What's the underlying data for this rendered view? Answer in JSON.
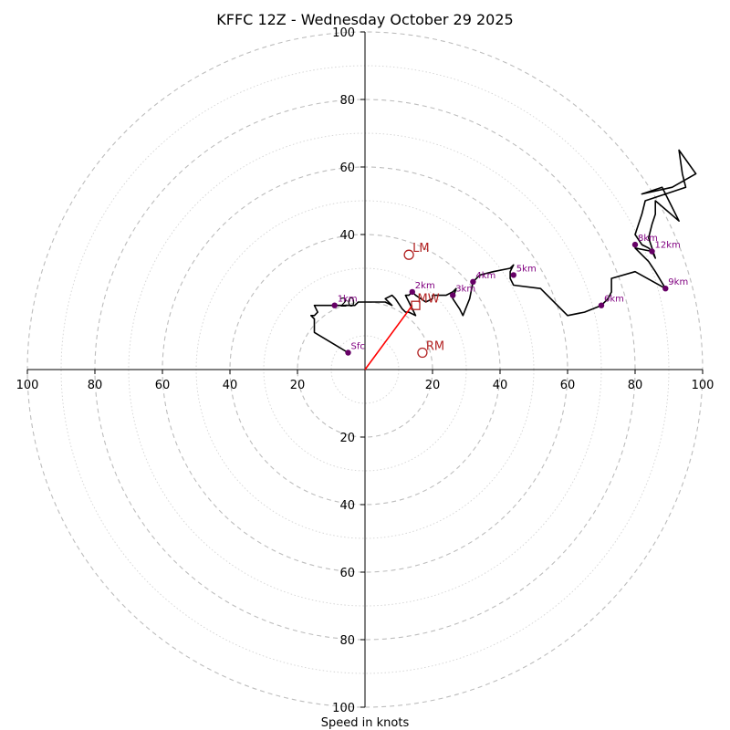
{
  "chart_data": {
    "type": "hodograph",
    "title": "KFFC 12Z - Wednesday October 29 2025",
    "xlabel": "Speed in knots",
    "ylabel": "",
    "xlim": [
      -100,
      100
    ],
    "ylim": [
      -100,
      100
    ],
    "ring_major_step": 20,
    "ring_minor_step": 10,
    "tick_labels": {
      "left": [
        "100",
        "80",
        "60",
        "40",
        "20"
      ],
      "right": [
        "20",
        "40",
        "60",
        "80",
        "100"
      ],
      "top": [
        "20",
        "40",
        "60",
        "80",
        "100"
      ],
      "bottom": [
        "20",
        "40",
        "60",
        "80",
        "100"
      ]
    },
    "tick_values": [
      20,
      40,
      60,
      80,
      100
    ],
    "profile": [
      [
        -5,
        5
      ],
      [
        -15,
        11
      ],
      [
        -15,
        15
      ],
      [
        -16,
        16
      ],
      [
        -15,
        16
      ],
      [
        -14,
        17
      ],
      [
        -15,
        19
      ],
      [
        -13,
        19
      ],
      [
        -10,
        19
      ],
      [
        -7,
        19
      ],
      [
        -4,
        19
      ],
      [
        -3,
        19
      ],
      [
        -2,
        20
      ],
      [
        -1,
        20
      ],
      [
        1,
        20
      ],
      [
        4,
        20
      ],
      [
        6,
        20
      ],
      [
        8,
        19
      ],
      [
        6,
        21
      ],
      [
        8,
        22
      ],
      [
        9,
        21
      ],
      [
        11,
        18
      ],
      [
        12,
        17
      ],
      [
        13,
        17
      ],
      [
        15,
        16
      ],
      [
        14,
        18
      ],
      [
        13,
        20
      ],
      [
        12,
        22
      ],
      [
        13,
        22
      ],
      [
        14,
        23
      ],
      [
        15,
        22
      ],
      [
        18,
        20
      ],
      [
        20,
        21
      ],
      [
        20,
        22
      ],
      [
        22,
        22
      ],
      [
        24,
        22
      ],
      [
        26,
        23
      ],
      [
        27,
        24
      ],
      [
        26,
        21
      ],
      [
        28,
        18
      ],
      [
        29,
        16
      ],
      [
        31,
        21
      ],
      [
        32,
        26
      ],
      [
        34,
        28
      ],
      [
        38,
        29
      ],
      [
        43,
        30
      ],
      [
        44,
        31
      ],
      [
        43,
        29
      ],
      [
        43,
        27
      ],
      [
        44,
        25
      ],
      [
        52,
        24
      ],
      [
        56,
        20
      ],
      [
        60,
        16
      ],
      [
        65,
        17
      ],
      [
        70,
        19
      ],
      [
        72,
        21
      ],
      [
        73,
        23
      ],
      [
        73,
        26
      ],
      [
        73,
        27
      ],
      [
        80,
        29
      ],
      [
        89,
        24
      ],
      [
        86,
        29
      ],
      [
        84,
        32
      ],
      [
        80,
        36
      ],
      [
        85,
        35
      ],
      [
        86,
        33
      ],
      [
        85,
        36
      ],
      [
        84,
        39
      ],
      [
        85,
        43
      ],
      [
        86,
        46
      ],
      [
        86,
        48
      ],
      [
        86,
        50
      ],
      [
        93,
        44
      ],
      [
        90,
        50
      ],
      [
        88,
        54
      ],
      [
        82,
        52
      ],
      [
        91,
        54
      ],
      [
        98,
        58
      ],
      [
        93,
        65
      ],
      [
        94,
        58
      ],
      [
        95,
        54
      ],
      [
        83,
        50
      ],
      [
        82,
        46
      ],
      [
        81,
        43
      ],
      [
        80,
        40
      ],
      [
        82,
        37
      ],
      [
        84,
        36
      ],
      [
        85,
        35
      ]
    ],
    "height_points": [
      {
        "label": "Sfc",
        "u": -5,
        "v": 5
      },
      {
        "label": "1km",
        "u": -9,
        "v": 19
      },
      {
        "label": "2km",
        "u": 14,
        "v": 23
      },
      {
        "label": "3km",
        "u": 26,
        "v": 22
      },
      {
        "label": "4km",
        "u": 32,
        "v": 26
      },
      {
        "label": "5km",
        "u": 44,
        "v": 28
      },
      {
        "label": "6km",
        "u": 70,
        "v": 19
      },
      {
        "label": "8km",
        "u": 80,
        "v": 37
      },
      {
        "label": "9km",
        "u": 89,
        "v": 24
      },
      {
        "label": "12km",
        "u": 85,
        "v": 35
      }
    ],
    "markers": [
      {
        "label": "LM",
        "u": 13,
        "v": 34,
        "shape": "circle"
      },
      {
        "label": "RM",
        "u": 17,
        "v": 5,
        "shape": "circle"
      },
      {
        "label": "MW",
        "u": 15,
        "v": 19,
        "shape": "square"
      }
    ],
    "vector": {
      "from": [
        0,
        0
      ],
      "to": [
        14,
        19
      ]
    },
    "colors": {
      "profile": "#000000",
      "height_points": "#660066",
      "height_labels": "#800080",
      "markers": "#b22222",
      "vector": "#ff0000",
      "rings": "#bdbdbd",
      "axes": "#000000"
    }
  }
}
